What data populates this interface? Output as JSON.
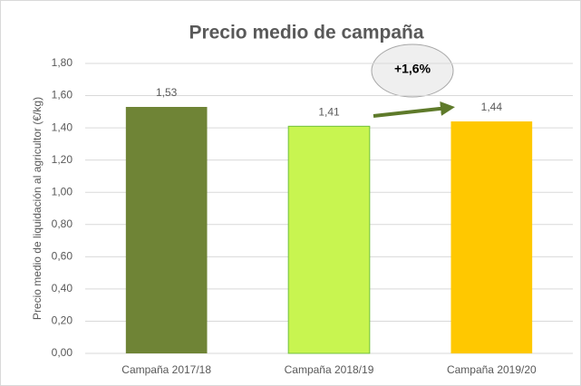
{
  "chart_data": {
    "type": "bar",
    "title": "Precio medio de campaña",
    "y_label": "Precio medio de liquidación al agricultor (€/kg)",
    "categories": [
      "Campaña 2017/18",
      "Campaña 2018/19",
      "Campaña 2019/20"
    ],
    "values": [
      1.53,
      1.41,
      1.44
    ],
    "value_labels": [
      "1,53",
      "1,41",
      "1,44"
    ],
    "colors": [
      "#6f8436",
      "#c8f550",
      "#ffc800"
    ],
    "ylim": [
      0,
      1.8
    ],
    "yticks": [
      {
        "value": 0,
        "label": "0,00"
      },
      {
        "value": 0.2,
        "label": "0,20"
      },
      {
        "value": 0.4,
        "label": "0,40"
      },
      {
        "value": 0.6,
        "label": "0,60"
      },
      {
        "value": 0.8,
        "label": "0,80"
      },
      {
        "value": 1.0,
        "label": "1,00"
      },
      {
        "value": 1.2,
        "label": "1,20"
      },
      {
        "value": 1.4,
        "label": "1,40"
      },
      {
        "value": 1.6,
        "label": "1,60"
      },
      {
        "value": 1.8,
        "label": "1,80"
      }
    ],
    "grid": true,
    "annotation": "+1,6%"
  }
}
